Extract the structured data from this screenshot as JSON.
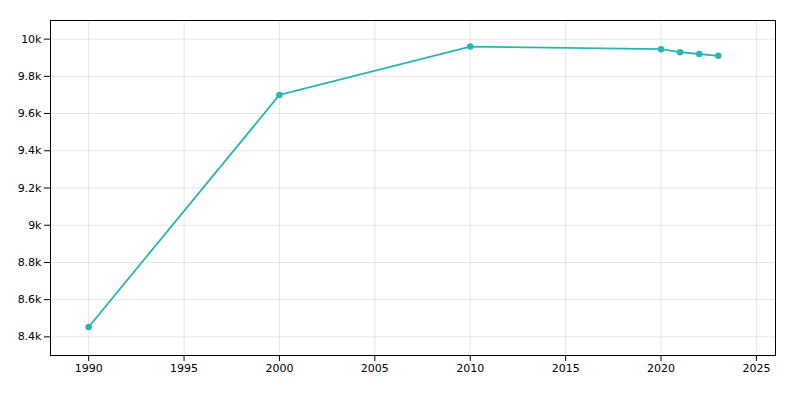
{
  "chart_data": {
    "type": "line",
    "x": [
      1990,
      2000,
      2010,
      2020,
      2021,
      2022,
      2023
    ],
    "values": [
      8453,
      9700,
      9960,
      9946,
      9930,
      9920,
      9910
    ],
    "color": "#2AB5B5",
    "marker": "circle",
    "xlim": [
      1988,
      2026
    ],
    "ylim": [
      8300,
      10100
    ],
    "xticks": [
      1990,
      1995,
      2000,
      2005,
      2010,
      2015,
      2020,
      2025
    ],
    "yticks": [
      {
        "value": 8400,
        "label": "8.4k"
      },
      {
        "value": 8600,
        "label": "8.6k"
      },
      {
        "value": 8800,
        "label": "8.8k"
      },
      {
        "value": 9000,
        "label": "9k"
      },
      {
        "value": 9200,
        "label": "9.2k"
      },
      {
        "value": 9400,
        "label": "9.4k"
      },
      {
        "value": 9600,
        "label": "9.6k"
      },
      {
        "value": 9800,
        "label": "9.8k"
      },
      {
        "value": 10000,
        "label": "10k"
      }
    ],
    "grid": true
  }
}
